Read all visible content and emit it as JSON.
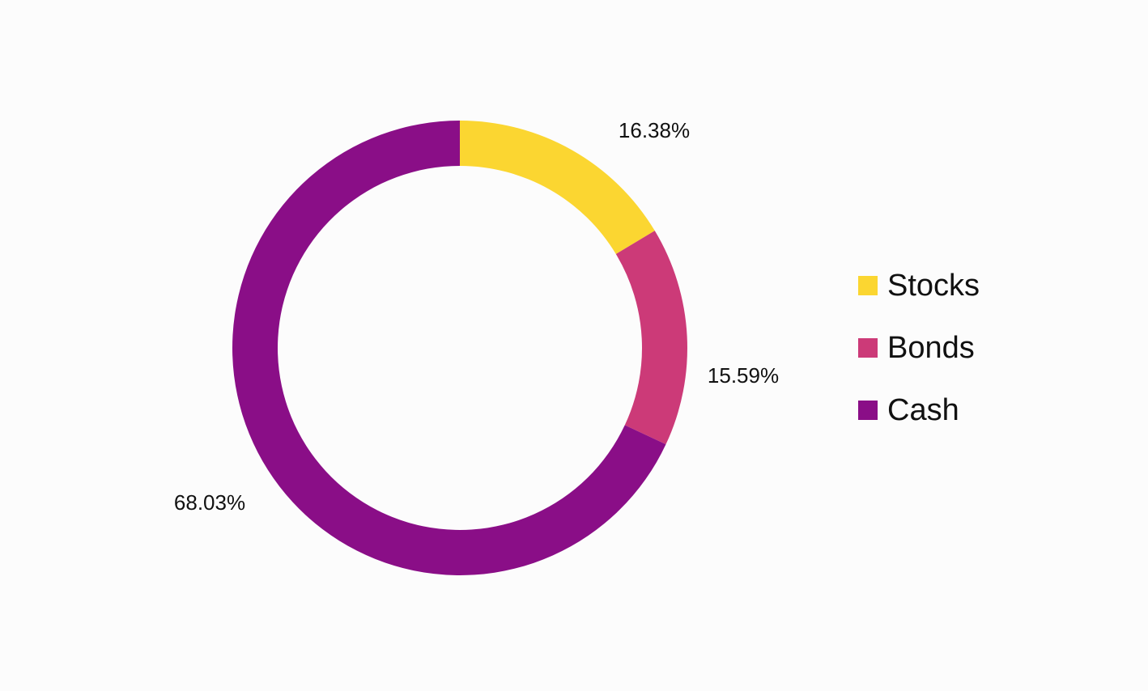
{
  "chart_data": {
    "type": "pie",
    "variant": "donut",
    "title": "",
    "categories": [
      "Stocks",
      "Bonds",
      "Cash"
    ],
    "values": [
      16.38,
      15.59,
      68.03
    ],
    "value_labels": [
      "16.38%",
      "15.59%",
      "68.03%"
    ],
    "colors": [
      "#fbd631",
      "#cc3a78",
      "#8a0e87"
    ],
    "legend_position": "right",
    "start_angle": "12 o'clock, clockwise"
  },
  "legend": {
    "items": [
      {
        "label": "Stocks",
        "color": "#fbd631"
      },
      {
        "label": "Bonds",
        "color": "#cc3a78"
      },
      {
        "label": "Cash",
        "color": "#8a0e87"
      }
    ]
  }
}
